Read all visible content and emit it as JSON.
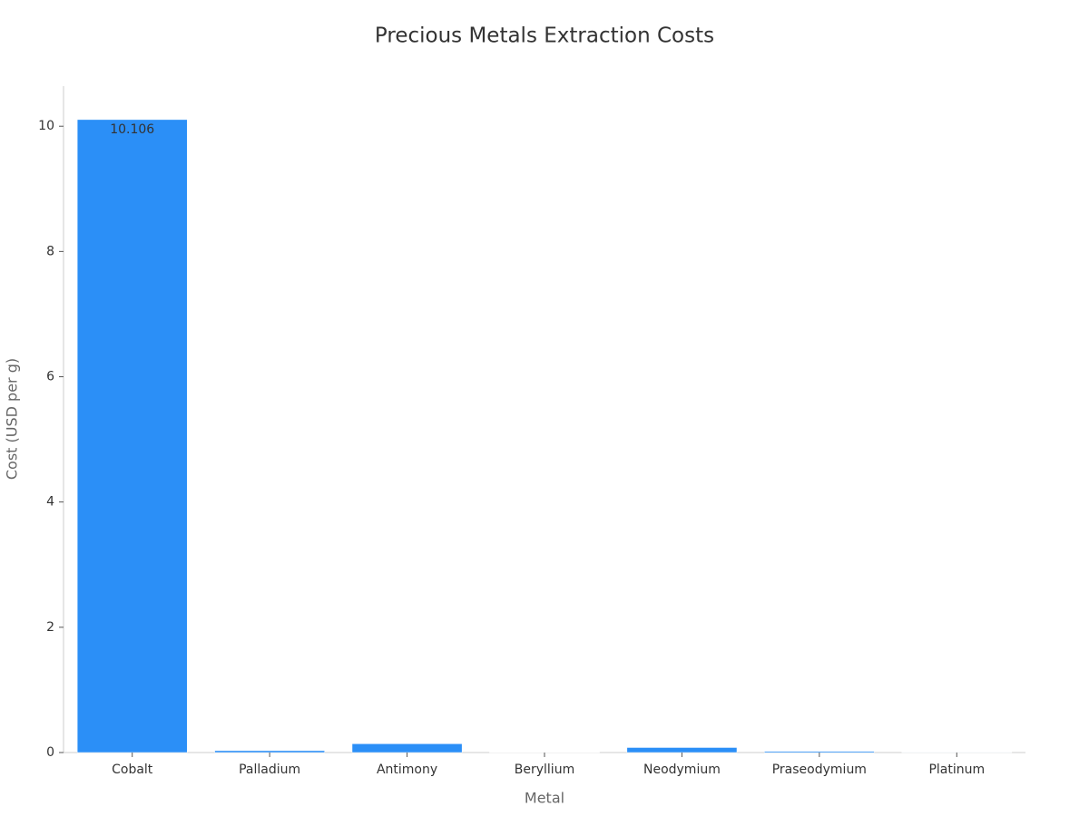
{
  "chart_data": {
    "type": "bar",
    "title": "Precious Metals Extraction Costs",
    "x_label": "Metal",
    "y_label": "Cost (USD per g)",
    "categories": [
      "Cobalt",
      "Palladium",
      "Antimony",
      "Beryllium",
      "Neodymium",
      "Praseodymium",
      "Platinum"
    ],
    "values": [
      10.106,
      0.03,
      0.14,
      0.005,
      0.08,
      0.02,
      0.003
    ],
    "color": "#2b8ff7",
    "ylim": [
      0,
      10.64
    ],
    "yticks": [
      0,
      2,
      4,
      6,
      8,
      10
    ]
  }
}
